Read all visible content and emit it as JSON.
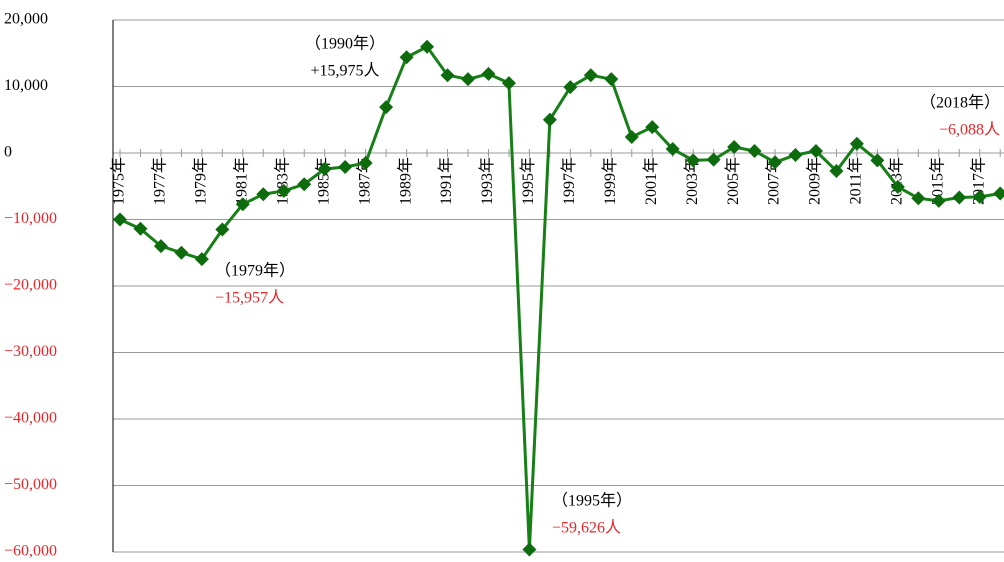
{
  "chart_data": {
    "type": "line",
    "categories": [
      "1975年",
      null,
      "1977年",
      null,
      "1979年",
      null,
      "1981年",
      null,
      "1983年",
      null,
      "1985年",
      null,
      "1987年",
      null,
      "1989年",
      null,
      "1991年",
      null,
      "1993年",
      null,
      "1995年",
      null,
      "1997年",
      null,
      "1999年",
      null,
      "2001年",
      null,
      "2003年",
      null,
      "2005年",
      null,
      "2007年",
      null,
      "2009年",
      null,
      "2011年",
      null,
      "2013年",
      null,
      "2015年",
      null,
      "2017年",
      null
    ],
    "series": [
      {
        "color": "#168016",
        "values": [
          -10000,
          -11400,
          -14000,
          -15000,
          -15957,
          -11500,
          -7700,
          -6200,
          -5700,
          -4700,
          -2400,
          -2100,
          -1500,
          6900,
          14400,
          15975,
          11700,
          11100,
          11900,
          10500,
          -59626,
          5000,
          9900,
          11700,
          11100,
          2400,
          3900,
          600,
          -1100,
          -1000,
          900,
          300,
          -1400,
          -300,
          300,
          -2700,
          1400,
          -1100,
          -5100,
          -6800,
          -7200,
          -6700,
          -6600,
          -6088
        ]
      }
    ],
    "ylim": [
      -60000,
      20000
    ],
    "yticks": [
      {
        "value": -60000,
        "label": "−60,000"
      },
      {
        "value": -50000,
        "label": "−50,000"
      },
      {
        "value": -40000,
        "label": "−40,000"
      },
      {
        "value": -30000,
        "label": "−30,000"
      },
      {
        "value": -20000,
        "label": "−20,000"
      },
      {
        "value": -10000,
        "label": "−10,000"
      },
      0,
      {
        "value": 10000,
        "label": "10,000"
      },
      {
        "value": 20000,
        "label": "20,000"
      }
    ],
    "grid": true,
    "annotations": [
      {
        "lines": [
          "（1979年）",
          "−15,957人"
        ],
        "colors": [
          "#000000",
          "#e8262a"
        ]
      },
      {
        "lines": [
          "（1990年）",
          "+15,975人"
        ],
        "colors": [
          "#000000",
          "#000000"
        ]
      },
      {
        "lines": [
          "（1995年）",
          "−59,626人"
        ],
        "colors": [
          "#000000",
          "#e8262a"
        ]
      },
      {
        "lines": [
          "（2018年）",
          "−6,088人"
        ],
        "colors": [
          "#000000",
          "#e8262a"
        ]
      }
    ]
  }
}
